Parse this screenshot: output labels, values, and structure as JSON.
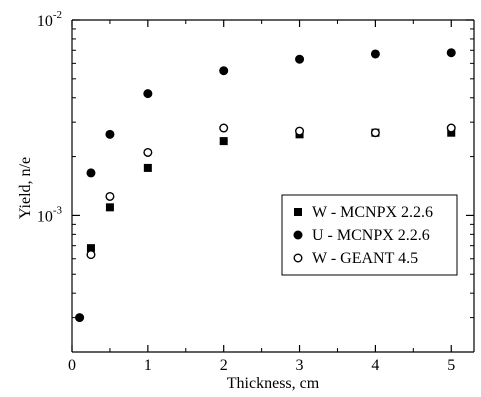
{
  "chart_data": {
    "type": "scatter",
    "title": "",
    "xlabel": "Thickness, cm",
    "ylabel": "Yield, n/e",
    "xlim": [
      0,
      5.3
    ],
    "ylim": [
      0.0002,
      0.01
    ],
    "yscale": "log",
    "x_ticks": [
      0,
      1,
      2,
      3,
      4,
      5
    ],
    "x_tick_labels": [
      "0",
      "1",
      "2",
      "3",
      "4",
      "5"
    ],
    "y_major_ticks": [
      0.001,
      0.01
    ],
    "y_tick_labels": [
      {
        "base": "10",
        "exp": "-3"
      },
      {
        "base": "10",
        "exp": "-2"
      }
    ],
    "legend_position": "right-middle",
    "grid": false,
    "series": [
      {
        "name": "W - MCNPX 2.2.6",
        "marker": "square-filled",
        "x": [
          0.25,
          0.5,
          1,
          2,
          3,
          4,
          5
        ],
        "y": [
          0.00068,
          0.0011,
          0.00175,
          0.0024,
          0.0026,
          0.00265,
          0.00265
        ]
      },
      {
        "name": "U - MCNPX 2.2.6",
        "marker": "circle-filled",
        "x": [
          0.1,
          0.25,
          0.5,
          1,
          2,
          3,
          4,
          5
        ],
        "y": [
          0.0003,
          0.00165,
          0.0026,
          0.0042,
          0.0055,
          0.0063,
          0.0067,
          0.0068
        ]
      },
      {
        "name": "W - GEANT 4.5",
        "marker": "circle-open",
        "x": [
          0.25,
          0.5,
          1,
          2,
          3,
          4,
          5
        ],
        "y": [
          0.00063,
          0.00125,
          0.0021,
          0.0028,
          0.0027,
          0.00265,
          0.0028
        ]
      }
    ]
  }
}
